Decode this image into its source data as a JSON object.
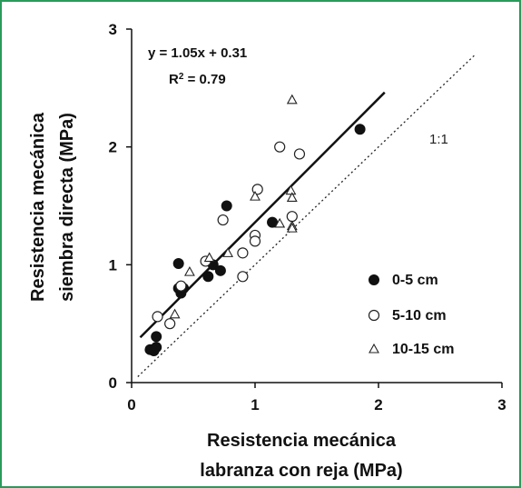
{
  "chart_data": {
    "type": "scatter",
    "xlabel": [
      "Resistencia mecánica",
      "labranza con reja (MPa)"
    ],
    "ylabel": [
      "Resistencia mecánica",
      "siembra directa (MPa)"
    ],
    "xlim": [
      0,
      3
    ],
    "ylim": [
      0,
      3
    ],
    "xticks": [
      "0",
      "1",
      "2",
      "3"
    ],
    "yticks": [
      "0",
      "1",
      "2",
      "3"
    ],
    "grid": false,
    "legend_position": "bottom-right",
    "equation": "y = 1.05x + 0.31",
    "r2_prefix": "R",
    "r2_exp": "2",
    "r2_suffix": " = 0.79",
    "regression": {
      "slope": 1.05,
      "intercept": 0.31,
      "x_range": [
        0.07,
        2.05
      ]
    },
    "reference_line": {
      "label": "1:1",
      "x_range": [
        0.05,
        2.78
      ]
    },
    "series": [
      {
        "name": "0-5  cm",
        "marker": "filled-circle",
        "points": [
          [
            0.15,
            0.28
          ],
          [
            0.18,
            0.27
          ],
          [
            0.2,
            0.3
          ],
          [
            0.2,
            0.39
          ],
          [
            0.38,
            1.01
          ],
          [
            0.38,
            0.8
          ],
          [
            0.4,
            0.76
          ],
          [
            0.42,
            0.8
          ],
          [
            0.62,
            0.9
          ],
          [
            0.66,
            1.0
          ],
          [
            0.72,
            0.95
          ],
          [
            0.77,
            1.5
          ],
          [
            1.14,
            1.36
          ],
          [
            1.85,
            2.15
          ]
        ]
      },
      {
        "name": "5-10 cm",
        "marker": "open-circle",
        "points": [
          [
            0.21,
            0.56
          ],
          [
            0.31,
            0.5
          ],
          [
            0.4,
            0.82
          ],
          [
            0.6,
            1.03
          ],
          [
            0.74,
            1.38
          ],
          [
            0.9,
            0.9
          ],
          [
            0.9,
            1.1
          ],
          [
            1.0,
            1.25
          ],
          [
            1.0,
            1.2
          ],
          [
            1.02,
            1.64
          ],
          [
            1.2,
            2.0
          ],
          [
            1.3,
            1.41
          ],
          [
            1.36,
            1.94
          ]
        ]
      },
      {
        "name": "10-15 cm",
        "marker": "open-triangle",
        "points": [
          [
            0.35,
            0.58
          ],
          [
            0.47,
            0.94
          ],
          [
            0.63,
            1.06
          ],
          [
            0.78,
            1.1
          ],
          [
            1.0,
            1.58
          ],
          [
            1.2,
            1.35
          ],
          [
            1.29,
            1.63
          ],
          [
            1.3,
            1.57
          ],
          [
            1.3,
            1.33
          ],
          [
            1.3,
            1.31
          ],
          [
            1.3,
            2.4
          ]
        ]
      }
    ]
  }
}
